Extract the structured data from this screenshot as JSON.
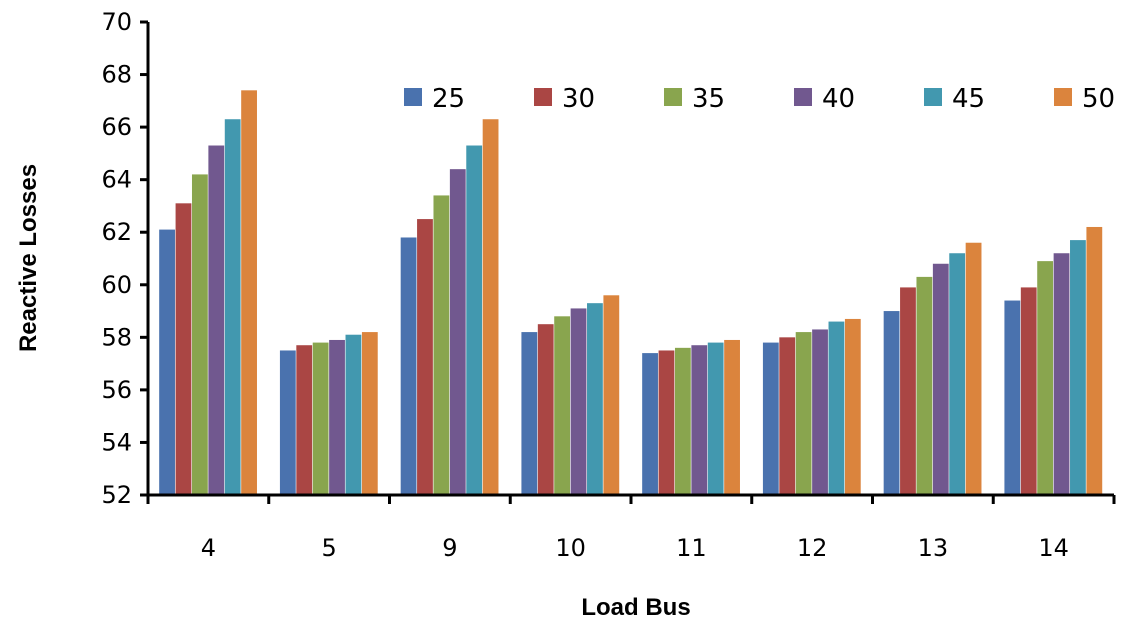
{
  "chart_data": {
    "type": "bar",
    "title": "",
    "xlabel": "Load Bus",
    "ylabel": "Reactive Losses",
    "ylim": [
      52,
      70
    ],
    "yticks": [
      52,
      54,
      56,
      58,
      60,
      62,
      64,
      66,
      68,
      70
    ],
    "categories": [
      "4",
      "5",
      "9",
      "10",
      "11",
      "12",
      "13",
      "14"
    ],
    "grid": false,
    "legend_position": "top-right",
    "series": [
      {
        "name": "25",
        "color": "#4A72AE",
        "values": [
          62.1,
          57.5,
          61.8,
          58.2,
          57.4,
          57.8,
          59.0,
          59.4
        ]
      },
      {
        "name": "30",
        "color": "#AA4644",
        "values": [
          63.1,
          57.7,
          62.5,
          58.5,
          57.5,
          58.0,
          59.9,
          59.9
        ]
      },
      {
        "name": "35",
        "color": "#89A54E",
        "values": [
          64.2,
          57.8,
          63.4,
          58.8,
          57.6,
          58.2,
          60.3,
          60.9
        ]
      },
      {
        "name": "40",
        "color": "#71588F",
        "values": [
          65.3,
          57.9,
          64.4,
          59.1,
          57.7,
          58.3,
          60.8,
          61.2
        ]
      },
      {
        "name": "45",
        "color": "#4298AF",
        "values": [
          66.3,
          58.1,
          65.3,
          59.3,
          57.8,
          58.6,
          61.2,
          61.7
        ]
      },
      {
        "name": "50",
        "color": "#DB843D",
        "values": [
          67.4,
          58.2,
          66.3,
          59.6,
          57.9,
          58.7,
          61.6,
          62.2
        ]
      }
    ]
  }
}
